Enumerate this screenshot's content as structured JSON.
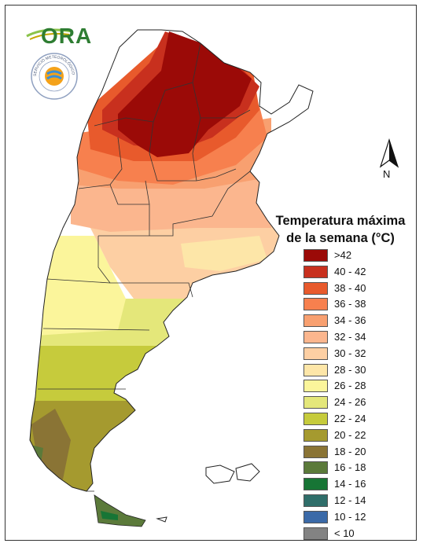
{
  "header": {
    "org_logo_text": "ORA",
    "seal_text": "SERVICIO METEOROLÓGICO NACIONAL · ARGENTINA"
  },
  "north_arrow": {
    "label": "N"
  },
  "legend": {
    "title_line1": "Temperatura máxima",
    "title_line2": "de la semana (°C)",
    "items": [
      {
        "label": ">42",
        "color": "#9b0a07"
      },
      {
        "label": "40 - 42",
        "color": "#c8301e"
      },
      {
        "label": "38 - 40",
        "color": "#e85a2c"
      },
      {
        "label": "36 - 38",
        "color": "#f7804e"
      },
      {
        "label": "34 - 36",
        "color": "#f8a070"
      },
      {
        "label": "32 - 34",
        "color": "#fbb68e"
      },
      {
        "label": "30 - 32",
        "color": "#fdcfa3"
      },
      {
        "label": "28 - 30",
        "color": "#fde6a8"
      },
      {
        "label": "26 - 28",
        "color": "#fbf59b"
      },
      {
        "label": "24 - 26",
        "color": "#e4e77a"
      },
      {
        "label": "22 - 24",
        "color": "#c6cb3c"
      },
      {
        "label": "20 - 22",
        "color": "#a59a2f"
      },
      {
        "label": "18 - 20",
        "color": "#8a7435"
      },
      {
        "label": "16 - 18",
        "color": "#5b7a3a"
      },
      {
        "label": "14 - 16",
        "color": "#177535"
      },
      {
        "label": "12 - 14",
        "color": "#2f6e6a"
      },
      {
        "label": "10 - 12",
        "color": "#3b6aa8"
      },
      {
        "label": "< 10",
        "color": "#838383"
      }
    ]
  }
}
